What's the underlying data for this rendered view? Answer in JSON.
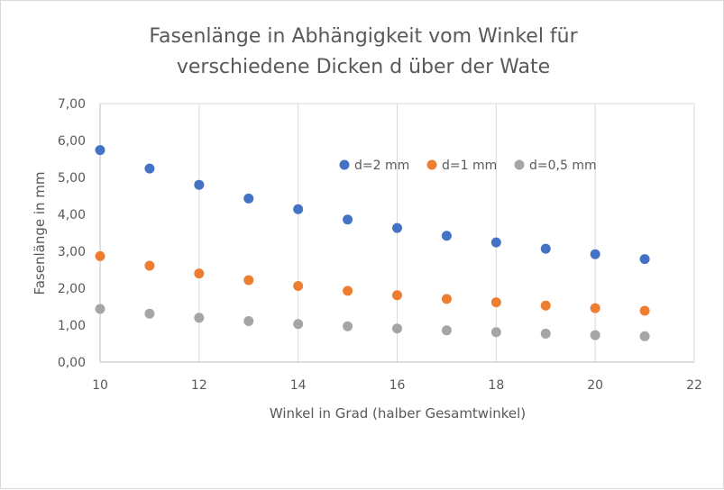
{
  "chart_data": {
    "type": "scatter",
    "title_lines": [
      "Fasenlänge in Abhängigkeit vom Winkel für",
      "verschiedene Dicken d über der Wate"
    ],
    "xlabel": "Winkel in Grad (halber Gesamtwinkel)",
    "ylabel": "Fasenlänge in mm",
    "xlim": [
      10,
      22
    ],
    "ylim": [
      0,
      7
    ],
    "x_ticks": [
      "10",
      "12",
      "14",
      "16",
      "18",
      "20",
      "22"
    ],
    "x_tick_values": [
      10,
      12,
      14,
      16,
      18,
      20,
      22
    ],
    "y_ticks": [
      "0,00",
      "1,00",
      "2,00",
      "3,00",
      "4,00",
      "5,00",
      "6,00",
      "7,00"
    ],
    "y_tick_values": [
      0,
      1,
      2,
      3,
      4,
      5,
      6,
      7
    ],
    "x": [
      10,
      11,
      12,
      13,
      14,
      15,
      16,
      17,
      18,
      19,
      20,
      21
    ],
    "series": [
      {
        "name": "d=2 mm",
        "color": "#4472C4",
        "values": [
          5.74,
          5.24,
          4.8,
          4.43,
          4.14,
          3.86,
          3.63,
          3.42,
          3.24,
          3.07,
          2.92,
          2.79
        ]
      },
      {
        "name": "d=1 mm",
        "color": "#ED7D31",
        "values": [
          2.87,
          2.61,
          2.4,
          2.22,
          2.06,
          1.93,
          1.81,
          1.71,
          1.62,
          1.53,
          1.46,
          1.39
        ]
      },
      {
        "name": "d=0,5 mm",
        "color": "#A5A5A5",
        "values": [
          1.44,
          1.31,
          1.2,
          1.11,
          1.03,
          0.97,
          0.91,
          0.86,
          0.81,
          0.77,
          0.73,
          0.7
        ]
      }
    ],
    "grid": "vertical",
    "legend_position": "upper-right inside plot"
  }
}
